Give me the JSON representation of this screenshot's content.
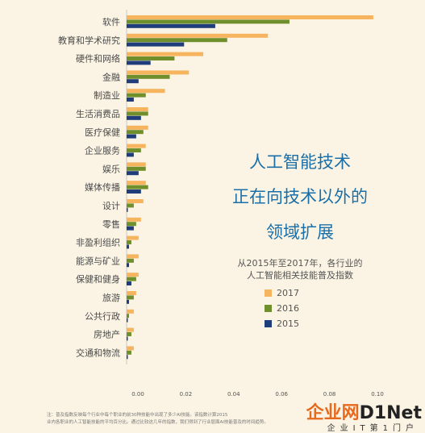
{
  "chart_data": {
    "type": "bar",
    "orientation": "horizontal",
    "title_lines": [
      "人工智能技术",
      "正在向技术以外的",
      "领域扩展"
    ],
    "subtitle_lines": [
      "从2015年至2017年，各行业的",
      "人工智能相关技能普及指数"
    ],
    "categories": [
      "软件",
      "教育和学术研究",
      "硬件和网络",
      "金融",
      "制造业",
      "生活消费品",
      "医疗保健",
      "企业服务",
      "娱乐",
      "媒体传播",
      "设计",
      "零售",
      "非盈利组织",
      "能源与矿业",
      "保健和健身",
      "旅游",
      "公共行政",
      "房地产",
      "交通和物流"
    ],
    "series": [
      {
        "name": "2017",
        "color": "#f6b45e",
        "values": [
          0.103,
          0.059,
          0.032,
          0.026,
          0.016,
          0.009,
          0.009,
          0.008,
          0.008,
          0.008,
          0.007,
          0.006,
          0.005,
          0.005,
          0.005,
          0.004,
          0.003,
          0.003,
          0.003
        ]
      },
      {
        "name": "2016",
        "color": "#6f8f2c",
        "values": [
          0.068,
          0.042,
          0.02,
          0.018,
          0.008,
          0.009,
          0.007,
          0.006,
          0.008,
          0.009,
          0.003,
          0.004,
          0.002,
          0.003,
          0.004,
          0.003,
          0.001,
          0.002,
          0.002
        ]
      },
      {
        "name": "2015",
        "color": "#1f3d7a",
        "values": [
          0.037,
          0.024,
          0.01,
          0.005,
          0.003,
          0.006,
          0.004,
          0.003,
          0.005,
          0.006,
          0.0005,
          0.003,
          0.001,
          0.001,
          0.002,
          0.001,
          0.0005,
          0.0005,
          0.0005
        ]
      }
    ],
    "xticks": [
      0.0,
      0.02,
      0.04,
      0.06,
      0.08,
      0.1
    ],
    "xlim": [
      0,
      0.105
    ],
    "legend_position": "right"
  },
  "note_lines": [
    "注：普及指数反映每个行业中每个职业的前30种技能中出现了多少AI技能。该指数计算2015",
    "业内各职业的人工智能技能的平均百分比。通过比较这几年的指数，我们得到了行业层面AI技能普及的时间趋势。"
  ],
  "watermark": {
    "brand": "企业网",
    "brand_net": "D1Net",
    "sub": "企业IT第1门户"
  }
}
